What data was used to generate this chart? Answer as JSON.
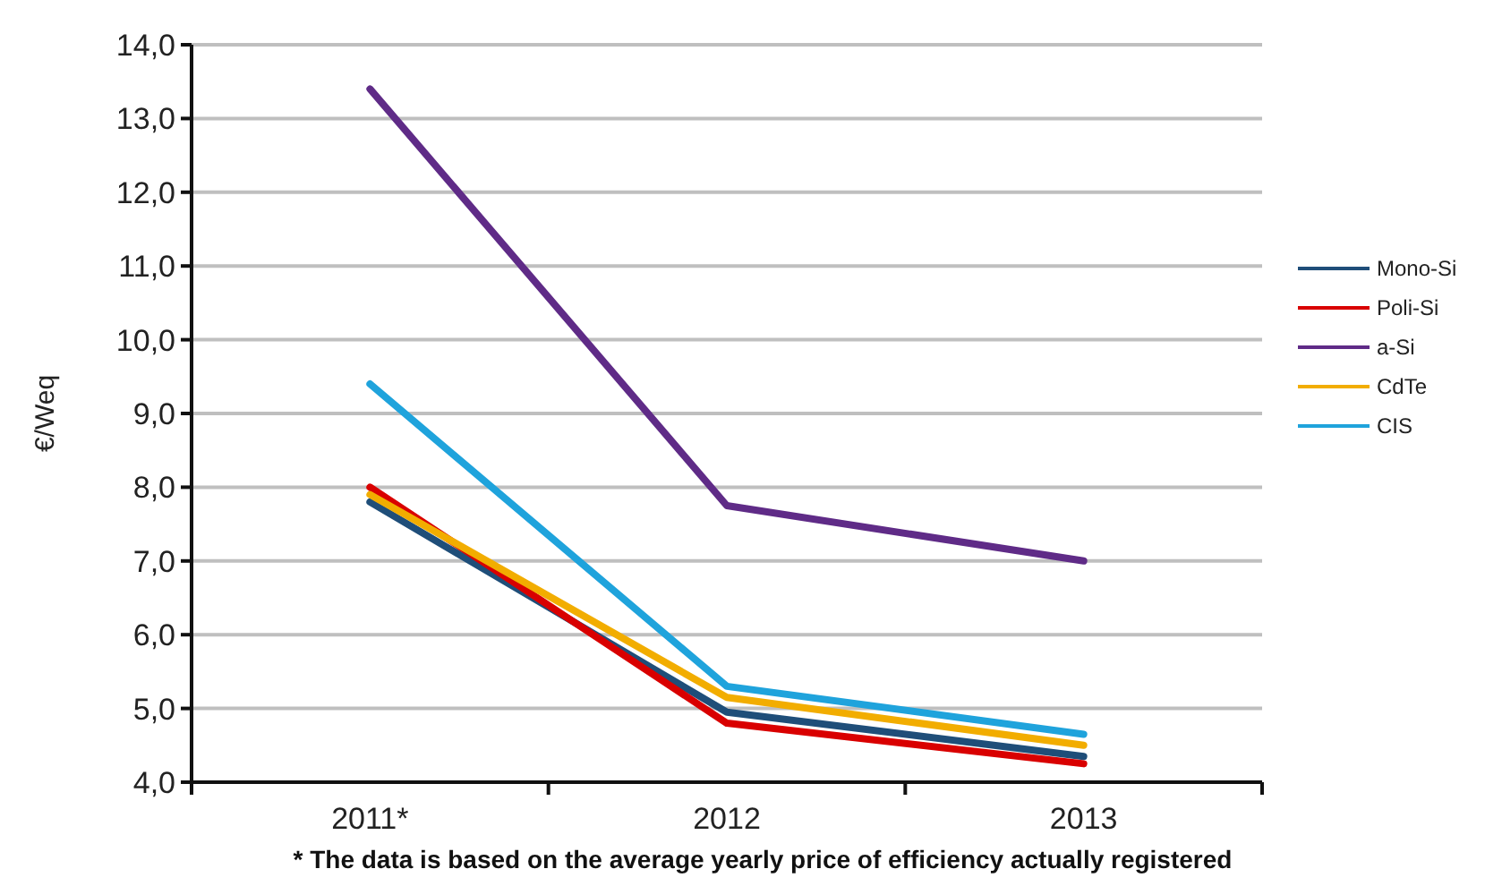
{
  "chart_data": {
    "type": "line",
    "ylabel": "€/Weq",
    "categories": [
      "2011*",
      "2012",
      "2013"
    ],
    "series": [
      {
        "name": "Mono-Si",
        "color": "#1f4e79",
        "values": [
          7.8,
          4.95,
          4.35
        ]
      },
      {
        "name": "Poli-Si",
        "color": "#d90000",
        "values": [
          8.0,
          4.8,
          4.25
        ]
      },
      {
        "name": "a-Si",
        "color": "#5f2b87",
        "values": [
          13.4,
          7.75,
          7.0
        ]
      },
      {
        "name": "CdTe",
        "color": "#f2ad00",
        "values": [
          7.9,
          5.15,
          4.5
        ]
      },
      {
        "name": "CIS",
        "color": "#1fa3dc",
        "values": [
          9.4,
          5.3,
          4.65
        ]
      }
    ],
    "ylim": [
      4,
      14
    ],
    "yticks": [
      {
        "value": 4,
        "label": "4,0"
      },
      {
        "value": 5,
        "label": "5,0"
      },
      {
        "value": 6,
        "label": "6,0"
      },
      {
        "value": 7,
        "label": "7,0"
      },
      {
        "value": 8,
        "label": "8,0"
      },
      {
        "value": 9,
        "label": "9,0"
      },
      {
        "value": 10,
        "label": "10,0"
      },
      {
        "value": 11,
        "label": "11,0"
      },
      {
        "value": 12,
        "label": "12,0"
      },
      {
        "value": 13,
        "label": "13,0"
      },
      {
        "value": 14,
        "label": "14,0"
      }
    ],
    "grid": "y",
    "legend": "right",
    "marker": "none",
    "line_style": "solid",
    "annotations": [
      "* The data is based on the average yearly price of efficiency actually registered"
    ]
  }
}
